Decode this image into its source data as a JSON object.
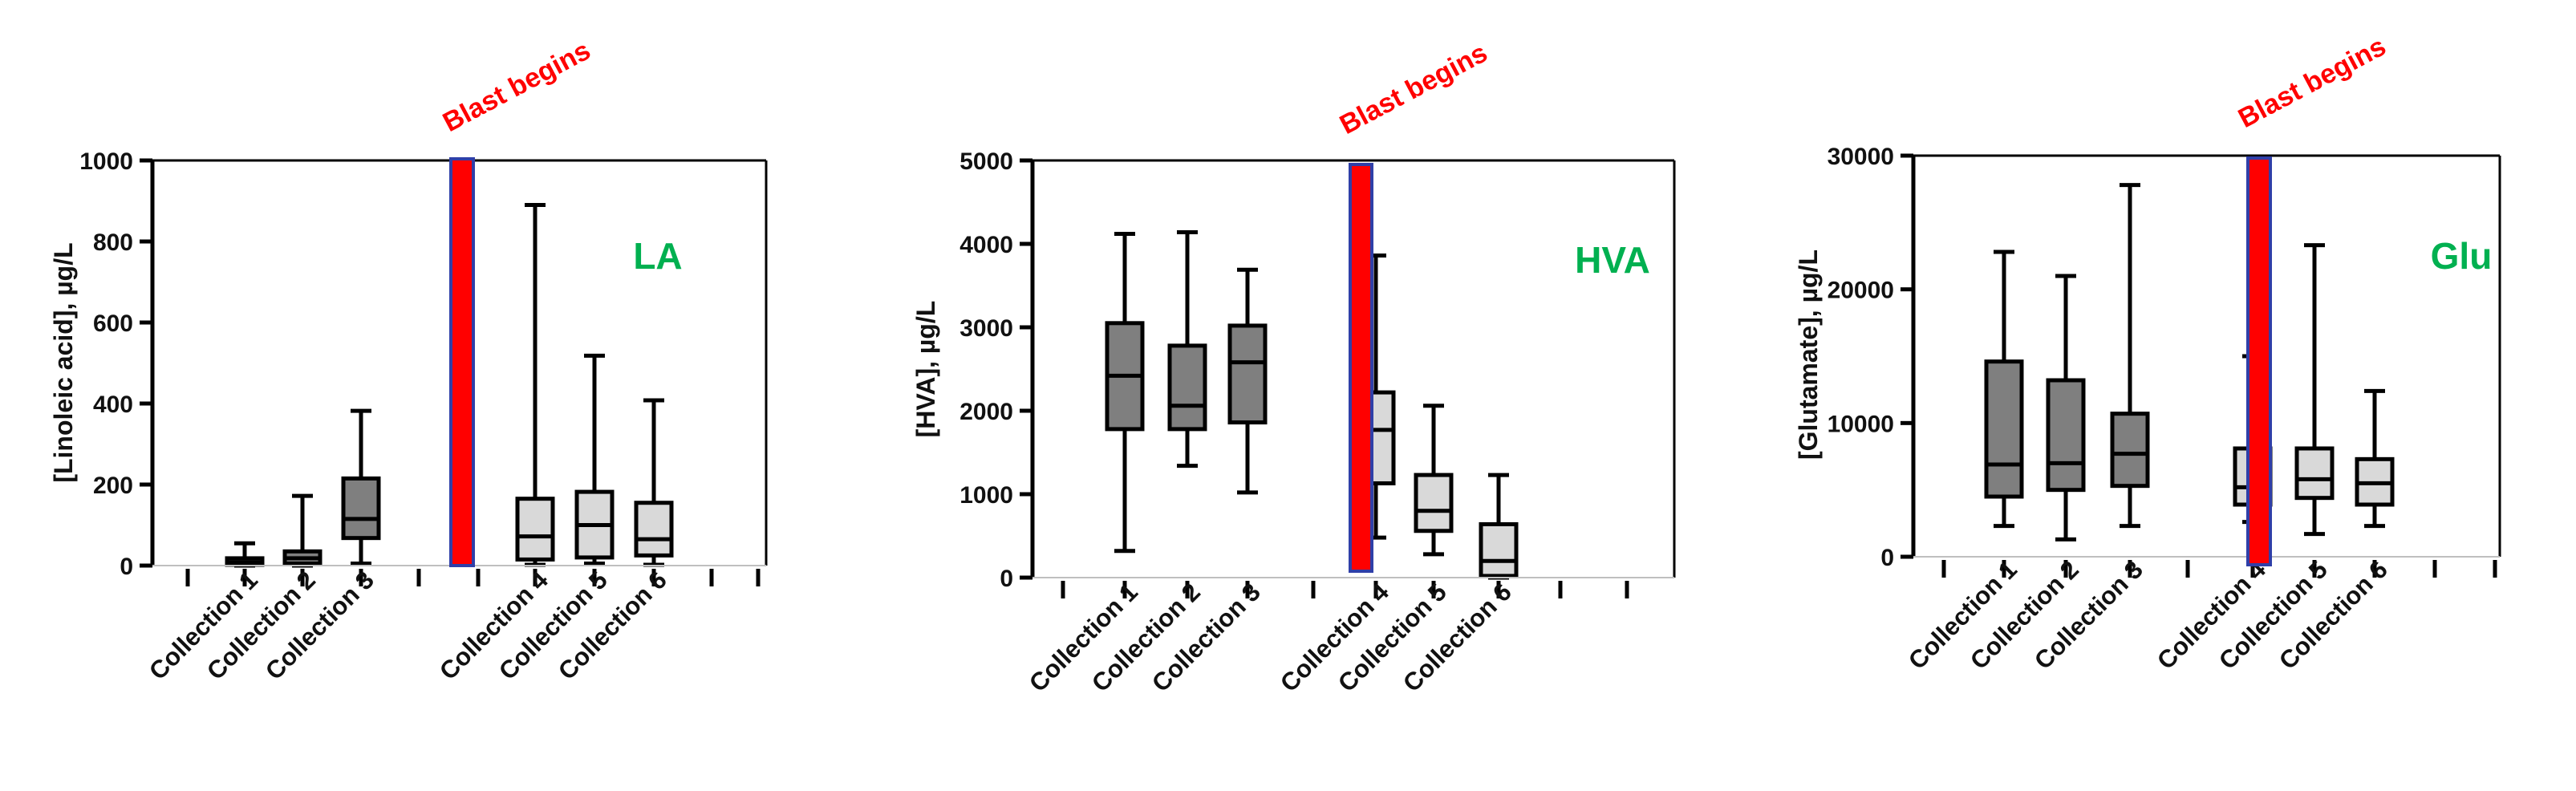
{
  "colors": {
    "pre_box": "#7f7f7f",
    "post_box": "#d9d9d9",
    "blast_bar": "#ff0000",
    "blast_bar_edge": "#2f3fa8",
    "blast_text": "#ff0000",
    "tag_text": "#00b050",
    "axis": "#000000"
  },
  "chart_data": [
    {
      "type": "box",
      "title": "",
      "ylabel": "[Linoleic acid], µg/L",
      "tag": "LA",
      "annotation": "Blast begins",
      "ylim": [
        0,
        1000
      ],
      "yticks": [
        0,
        200,
        400,
        600,
        800,
        1000
      ],
      "ytick_labels": [
        "0",
        "200",
        "400",
        "600",
        "800",
        "1000"
      ],
      "categories": [
        "Collection 1",
        "Collection 2",
        "Collection 3",
        "Collection 4",
        "Collection 5",
        "Collection 6"
      ],
      "groups": [
        "pre",
        "pre",
        "pre",
        "post",
        "post",
        "post"
      ],
      "series": [
        {
          "name": "Collection 1",
          "min": 0,
          "q1": 2,
          "median": 8,
          "q3": 18,
          "max": 55
        },
        {
          "name": "Collection 2",
          "min": 0,
          "q1": 5,
          "median": 18,
          "q3": 35,
          "max": 172
        },
        {
          "name": "Collection 3",
          "min": 5,
          "q1": 68,
          "median": 115,
          "q3": 215,
          "max": 382
        },
        {
          "name": "Collection 4",
          "min": 2,
          "q1": 15,
          "median": 72,
          "q3": 165,
          "max": 890
        },
        {
          "name": "Collection 5",
          "min": 5,
          "q1": 20,
          "median": 100,
          "q3": 182,
          "max": 518
        },
        {
          "name": "Collection 6",
          "min": 2,
          "q1": 25,
          "median": 65,
          "q3": 155,
          "max": 408
        }
      ]
    },
    {
      "type": "box",
      "title": "",
      "ylabel": "[HVA], µg/L",
      "tag": "HVA",
      "annotation": "Blast begins",
      "ylim": [
        0,
        5000
      ],
      "yticks": [
        0,
        1000,
        2000,
        3000,
        4000,
        5000
      ],
      "ytick_labels": [
        "0",
        "1000",
        "2000",
        "3000",
        "4000",
        "5000"
      ],
      "categories": [
        "Collection 1",
        "Collection 2",
        "Collection 3",
        "Collection 4",
        "Collection 5",
        "Collection 6"
      ],
      "groups": [
        "pre",
        "pre",
        "pre",
        "post",
        "post",
        "post"
      ],
      "series": [
        {
          "name": "Collection 1",
          "min": 320,
          "q1": 1780,
          "median": 2420,
          "q3": 3050,
          "max": 4120
        },
        {
          "name": "Collection 2",
          "min": 1340,
          "q1": 1780,
          "median": 2060,
          "q3": 2780,
          "max": 4140
        },
        {
          "name": "Collection 3",
          "min": 1020,
          "q1": 1860,
          "median": 2580,
          "q3": 3020,
          "max": 3690
        },
        {
          "name": "Collection 4",
          "min": 480,
          "q1": 1130,
          "median": 1770,
          "q3": 2220,
          "max": 3860
        },
        {
          "name": "Collection 5",
          "min": 280,
          "q1": 560,
          "median": 800,
          "q3": 1230,
          "max": 2060
        },
        {
          "name": "Collection 6",
          "min": 0,
          "q1": 20,
          "median": 200,
          "q3": 640,
          "max": 1230
        }
      ]
    },
    {
      "type": "box",
      "title": "",
      "ylabel": "[Glutamate], µg/L",
      "tag": "Glu",
      "annotation": "Blast begins",
      "ylim": [
        0,
        30000
      ],
      "yticks": [
        0,
        10000,
        20000,
        30000
      ],
      "ytick_labels": [
        "0",
        "10000",
        "20000",
        "30000"
      ],
      "categories": [
        "Collection 1",
        "Collection 2",
        "Collection 3",
        "Collection 4",
        "Collection 5",
        "Collection 6"
      ],
      "groups": [
        "pre",
        "pre",
        "pre",
        "post",
        "post",
        "post"
      ],
      "series": [
        {
          "name": "Collection 1",
          "min": 2300,
          "q1": 4500,
          "median": 6900,
          "q3": 14600,
          "max": 22800
        },
        {
          "name": "Collection 2",
          "min": 1300,
          "q1": 5000,
          "median": 7000,
          "q3": 13200,
          "max": 21000
        },
        {
          "name": "Collection 3",
          "min": 2300,
          "q1": 5300,
          "median": 7700,
          "q3": 10700,
          "max": 27800
        },
        {
          "name": "Collection 4",
          "min": 2600,
          "q1": 3900,
          "median": 5200,
          "q3": 8100,
          "max": 15000
        },
        {
          "name": "Collection 5",
          "min": 1700,
          "q1": 4400,
          "median": 5800,
          "q3": 8100,
          "max": 23300
        },
        {
          "name": "Collection 6",
          "min": 2300,
          "q1": 3900,
          "median": 5500,
          "q3": 7300,
          "max": 12400
        }
      ]
    }
  ]
}
